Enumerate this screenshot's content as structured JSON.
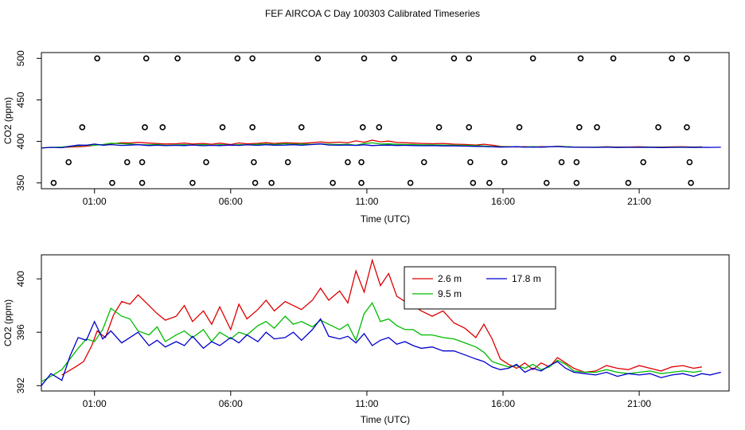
{
  "title": "FEF AIRCOA C  Day 100303  Calibrated Timeseries",
  "chart_data": [
    {
      "type": "scatter",
      "panel": "top",
      "xlabel": "Time (UTC)",
      "ylabel": "CO2 (ppm)",
      "xlim": [
        -0.95,
        24.3
      ],
      "ylim": [
        343,
        507
      ],
      "x_ticks": [
        1,
        6,
        11,
        16,
        21
      ],
      "x_tick_labels": [
        "01:00",
        "06:00",
        "11:00",
        "16:00",
        "21:00"
      ],
      "y_ticks": [
        350,
        400,
        450,
        500
      ],
      "y_tick_labels": [
        "350",
        "400",
        "450",
        "500"
      ],
      "calibration_points": [
        {
          "x": -0.5,
          "y": 350
        },
        {
          "x": 0.05,
          "y": 375
        },
        {
          "x": 0.55,
          "y": 417
        },
        {
          "x": 1.1,
          "y": 500
        },
        {
          "x": 1.65,
          "y": 350
        },
        {
          "x": 2.2,
          "y": 375
        },
        {
          "x": 2.75,
          "y": 350
        },
        {
          "x": 2.75,
          "y": 375
        },
        {
          "x": 2.85,
          "y": 417
        },
        {
          "x": 2.9,
          "y": 500
        },
        {
          "x": 3.5,
          "y": 417
        },
        {
          "x": 4.05,
          "y": 500
        },
        {
          "x": 4.6,
          "y": 350
        },
        {
          "x": 5.1,
          "y": 375
        },
        {
          "x": 5.7,
          "y": 417
        },
        {
          "x": 6.25,
          "y": 500
        },
        {
          "x": 6.8,
          "y": 417
        },
        {
          "x": 6.8,
          "y": 500
        },
        {
          "x": 6.85,
          "y": 375
        },
        {
          "x": 6.9,
          "y": 350
        },
        {
          "x": 7.5,
          "y": 350
        },
        {
          "x": 8.1,
          "y": 375
        },
        {
          "x": 8.6,
          "y": 417
        },
        {
          "x": 9.2,
          "y": 500
        },
        {
          "x": 9.75,
          "y": 350
        },
        {
          "x": 10.3,
          "y": 375
        },
        {
          "x": 10.8,
          "y": 350
        },
        {
          "x": 10.8,
          "y": 375
        },
        {
          "x": 10.85,
          "y": 417
        },
        {
          "x": 10.9,
          "y": 500
        },
        {
          "x": 11.45,
          "y": 417
        },
        {
          "x": 12.0,
          "y": 500
        },
        {
          "x": 12.6,
          "y": 350
        },
        {
          "x": 13.1,
          "y": 375
        },
        {
          "x": 13.65,
          "y": 417
        },
        {
          "x": 14.2,
          "y": 500
        },
        {
          "x": 14.75,
          "y": 500
        },
        {
          "x": 14.75,
          "y": 417
        },
        {
          "x": 14.8,
          "y": 375
        },
        {
          "x": 14.9,
          "y": 350
        },
        {
          "x": 15.5,
          "y": 350
        },
        {
          "x": 16.05,
          "y": 375
        },
        {
          "x": 16.6,
          "y": 417
        },
        {
          "x": 17.1,
          "y": 500
        },
        {
          "x": 17.6,
          "y": 350
        },
        {
          "x": 18.15,
          "y": 375
        },
        {
          "x": 18.7,
          "y": 350
        },
        {
          "x": 18.7,
          "y": 375
        },
        {
          "x": 18.8,
          "y": 417
        },
        {
          "x": 18.85,
          "y": 500
        },
        {
          "x": 19.45,
          "y": 417
        },
        {
          "x": 20.05,
          "y": 500
        },
        {
          "x": 20.6,
          "y": 350
        },
        {
          "x": 21.15,
          "y": 375
        },
        {
          "x": 21.7,
          "y": 417
        },
        {
          "x": 22.2,
          "y": 500
        },
        {
          "x": 22.75,
          "y": 500
        },
        {
          "x": 22.75,
          "y": 417
        },
        {
          "x": 22.85,
          "y": 375
        },
        {
          "x": 22.9,
          "y": 350
        }
      ],
      "series_colors": [
        "#dd0000",
        "#00bb00",
        "#0000cc"
      ],
      "series_source": "bottom panel traces"
    },
    {
      "type": "line",
      "panel": "bottom",
      "xlabel": "Time (UTC)",
      "ylabel": "CO2 (ppm)",
      "xlim": [
        -0.95,
        24.3
      ],
      "ylim": [
        391.6,
        401.8
      ],
      "x_ticks": [
        1,
        6,
        11,
        16,
        21
      ],
      "x_tick_labels": [
        "01:00",
        "06:00",
        "11:00",
        "16:00",
        "21:00"
      ],
      "y_ticks": [
        392,
        396,
        400
      ],
      "y_tick_labels": [
        "392",
        "396",
        "400"
      ],
      "legend": {
        "position": "top-right",
        "entries": [
          {
            "label": "2.6 m",
            "color": "#dd0000"
          },
          {
            "label": "17.8 m",
            "color": "#0000cc"
          },
          {
            "label": "9.5 m",
            "color": "#00bb00"
          }
        ]
      },
      "series": [
        {
          "name": "2.6 m",
          "color": "#dd0000",
          "x": [
            -0.2,
            0.3,
            0.6,
            0.9,
            1.1,
            1.4,
            1.7,
            2.0,
            2.3,
            2.6,
            3.0,
            3.3,
            3.6,
            4.0,
            4.3,
            4.6,
            5.0,
            5.3,
            5.6,
            6.0,
            6.3,
            6.6,
            7.0,
            7.3,
            7.6,
            8.0,
            8.3,
            8.6,
            9.0,
            9.3,
            9.6,
            10.0,
            10.3,
            10.6,
            10.9,
            11.2,
            11.5,
            11.8,
            12.1,
            12.4,
            12.7,
            13.0,
            13.4,
            13.8,
            14.2,
            14.6,
            15.0,
            15.3,
            15.6,
            15.9,
            16.2,
            16.5,
            16.8,
            17.1,
            17.4,
            17.7,
            18.0,
            18.3,
            18.6,
            19.0,
            19.4,
            19.8,
            20.2,
            20.6,
            21.0,
            21.4,
            21.8,
            22.2,
            22.6,
            23.0,
            23.3
          ],
          "values": [
            392.8,
            393.4,
            393.8,
            395.0,
            396.1,
            395.6,
            397.3,
            398.3,
            398.1,
            398.8,
            398.0,
            397.4,
            396.9,
            397.2,
            398.0,
            396.8,
            397.6,
            396.6,
            397.9,
            396.2,
            398.1,
            397.0,
            397.7,
            398.4,
            397.6,
            398.3,
            398.0,
            397.7,
            398.4,
            399.3,
            398.4,
            399.1,
            398.2,
            400.6,
            399.0,
            401.4,
            399.5,
            400.4,
            398.7,
            398.3,
            398.0,
            397.6,
            397.2,
            397.6,
            396.7,
            396.3,
            395.6,
            396.6,
            395.5,
            394.0,
            393.6,
            393.3,
            393.7,
            393.2,
            393.7,
            393.4,
            394.1,
            393.7,
            393.3,
            393.0,
            393.1,
            393.5,
            393.3,
            393.2,
            393.5,
            393.3,
            393.1,
            393.4,
            393.5,
            393.3,
            393.4
          ]
        },
        {
          "name": "9.5 m",
          "color": "#00bb00",
          "x": [
            -0.95,
            -0.6,
            -0.2,
            0.1,
            0.4,
            0.7,
            1.0,
            1.3,
            1.6,
            2.0,
            2.3,
            2.6,
            3.0,
            3.3,
            3.6,
            4.0,
            4.3,
            4.6,
            5.0,
            5.3,
            5.6,
            6.0,
            6.3,
            6.6,
            7.0,
            7.3,
            7.6,
            8.0,
            8.3,
            8.6,
            9.0,
            9.3,
            9.6,
            10.0,
            10.3,
            10.6,
            10.9,
            11.2,
            11.5,
            11.8,
            12.1,
            12.4,
            12.7,
            13.0,
            13.4,
            13.8,
            14.2,
            14.6,
            15.0,
            15.3,
            15.6,
            15.9,
            16.2,
            16.5,
            16.8,
            17.1,
            17.4,
            17.7,
            18.0,
            18.3,
            18.6,
            19.0,
            19.4,
            19.8,
            20.2,
            20.6,
            21.0,
            21.4,
            21.8,
            22.2,
            22.6,
            23.0,
            23.3
          ],
          "values": [
            392.3,
            392.7,
            393.2,
            394.0,
            394.8,
            395.5,
            395.3,
            396.2,
            397.8,
            397.2,
            397.0,
            396.1,
            395.8,
            396.4,
            395.3,
            395.8,
            396.1,
            395.6,
            396.2,
            395.3,
            396.0,
            395.5,
            396.0,
            395.8,
            396.5,
            396.8,
            396.3,
            397.2,
            396.6,
            396.8,
            396.4,
            396.9,
            396.6,
            396.2,
            396.6,
            395.4,
            397.4,
            398.2,
            396.8,
            397.0,
            396.5,
            396.2,
            396.2,
            395.8,
            395.8,
            395.6,
            395.5,
            395.2,
            394.9,
            394.5,
            393.8,
            393.6,
            393.4,
            393.5,
            393.3,
            393.6,
            393.2,
            393.4,
            393.9,
            393.6,
            393.1,
            393.0,
            393.0,
            393.2,
            393.0,
            392.9,
            393.0,
            393.1,
            392.9,
            393.0,
            393.1,
            393.0,
            393.1
          ]
        },
        {
          "name": "17.8 m",
          "color": "#0000cc",
          "x": [
            -0.95,
            -0.6,
            -0.2,
            0.1,
            0.4,
            0.7,
            1.0,
            1.3,
            1.6,
            2.0,
            2.3,
            2.6,
            3.0,
            3.3,
            3.6,
            4.0,
            4.3,
            4.6,
            5.0,
            5.3,
            5.6,
            6.0,
            6.3,
            6.6,
            7.0,
            7.3,
            7.6,
            8.0,
            8.3,
            8.6,
            9.0,
            9.3,
            9.6,
            10.0,
            10.3,
            10.6,
            10.9,
            11.2,
            11.5,
            11.8,
            12.1,
            12.4,
            12.7,
            13.0,
            13.4,
            13.8,
            14.2,
            14.6,
            15.0,
            15.3,
            15.6,
            15.9,
            16.2,
            16.5,
            16.8,
            17.1,
            17.4,
            17.7,
            18.0,
            18.3,
            18.6,
            19.0,
            19.4,
            19.8,
            20.2,
            20.6,
            21.0,
            21.4,
            21.8,
            22.2,
            22.6,
            23.0,
            23.3,
            23.6,
            24.0
          ],
          "values": [
            392.0,
            392.9,
            392.4,
            394.2,
            395.6,
            395.4,
            396.8,
            395.5,
            396.1,
            395.2,
            395.6,
            396.0,
            395.0,
            395.4,
            394.9,
            395.3,
            395.0,
            395.7,
            394.8,
            395.3,
            395.0,
            395.6,
            395.2,
            395.8,
            395.3,
            396.0,
            395.5,
            395.6,
            396.0,
            395.4,
            396.2,
            397.0,
            395.7,
            395.5,
            395.7,
            395.2,
            395.9,
            395.0,
            395.4,
            395.6,
            395.1,
            395.3,
            395.0,
            394.8,
            394.9,
            394.6,
            394.6,
            394.3,
            394.0,
            393.8,
            393.4,
            393.2,
            393.3,
            393.6,
            393.0,
            393.3,
            393.1,
            393.5,
            393.8,
            393.3,
            393.0,
            392.9,
            392.8,
            393.0,
            392.7,
            392.9,
            392.8,
            392.9,
            392.6,
            392.8,
            392.9,
            392.7,
            392.9,
            392.8,
            393.0
          ]
        }
      ]
    }
  ]
}
